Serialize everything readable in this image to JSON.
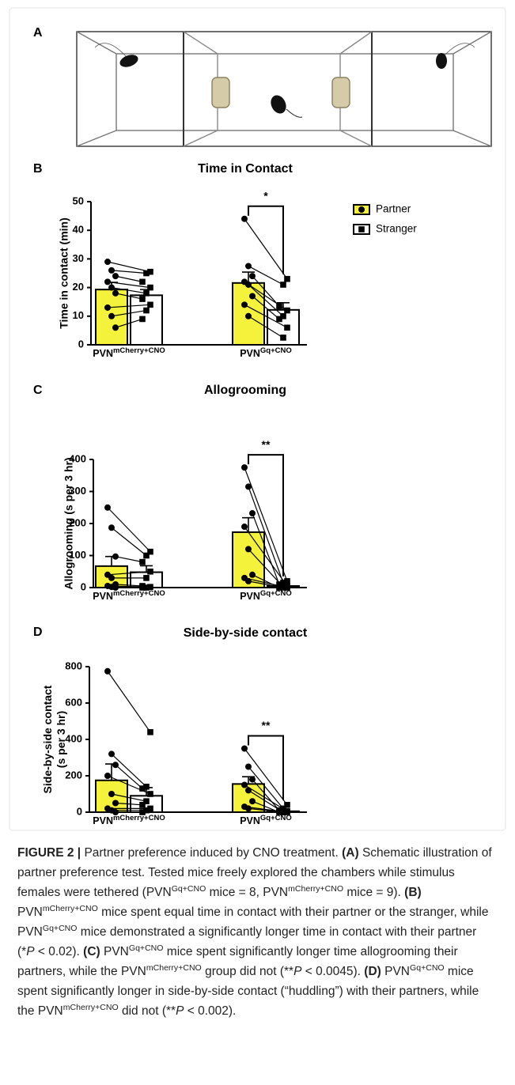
{
  "panel_labels": [
    "A",
    "B",
    "C",
    "D"
  ],
  "chart_data": [
    {
      "type": "bar",
      "title": "Time in Contact",
      "ylabel": [
        "Time in contact (min)"
      ],
      "categories": [
        {
          "text": "PVN",
          "sup": "mCherry+CNO"
        },
        {
          "text": "PVN",
          "sup": "Gq+CNO"
        }
      ],
      "series": [
        {
          "name": "Partner",
          "color": "#f5f23c",
          "marker": "circle",
          "values": [
            19.3,
            21.6
          ],
          "errors": [
            2.5,
            3.8
          ],
          "points": [
            [
              29,
              26,
              24,
              22,
              20,
              18,
              13,
              10,
              6
            ],
            [
              44,
              27.5,
              24,
              22,
              21,
              17,
              14,
              10
            ]
          ]
        },
        {
          "name": "Stranger",
          "color": "#ffffff",
          "marker": "square",
          "values": [
            17.3,
            12.2
          ],
          "errors": [
            2.0,
            2.5
          ],
          "points": [
            [
              25.5,
              25,
              22,
              20,
              18,
              16,
              14,
              12,
              9
            ],
            [
              23,
              21,
              13.5,
              12,
              10,
              9,
              6,
              2.5
            ]
          ]
        }
      ],
      "ylim": [
        0,
        50
      ],
      "yticks": [
        0,
        10,
        20,
        30,
        40,
        50
      ],
      "significance": [
        null,
        "*"
      ],
      "legend": "right"
    },
    {
      "type": "bar",
      "title": "Allogrooming",
      "ylabel": [
        "Allogrooming (s per 3 hr)"
      ],
      "categories": [
        {
          "text": "PVN",
          "sup": "mCherry+CNO"
        },
        {
          "text": "PVN",
          "sup": "Gq+CNO"
        }
      ],
      "series": [
        {
          "name": "Partner",
          "color": "#f5f23c",
          "marker": "circle",
          "values": [
            67,
            173
          ],
          "errors": [
            30,
            45
          ],
          "points": [
            [
              250,
              187,
              97,
              40,
              30,
              10,
              5,
              2,
              0
            ],
            [
              375,
              315,
              232,
              190,
              120,
              40,
              30,
              20
            ]
          ]
        },
        {
          "name": "Stranger",
          "color": "#ffffff",
          "marker": "square",
          "values": [
            48,
            5
          ],
          "errors": [
            20,
            3
          ],
          "points": [
            [
              112,
              100,
              80,
              50,
              30,
              5,
              2,
              0,
              0
            ],
            [
              20,
              15,
              10,
              5,
              2,
              0,
              0,
              0
            ]
          ]
        }
      ],
      "ylim": [
        0,
        400
      ],
      "yticks": [
        0,
        100,
        200,
        300,
        400
      ],
      "significance": [
        null,
        "**"
      ]
    },
    {
      "type": "bar",
      "title": "Side-by-side contact",
      "ylabel": [
        "Side-by-side contact",
        "(s per 3 hr)"
      ],
      "categories": [
        {
          "text": "PVN",
          "sup": "mCherry+CNO"
        },
        {
          "text": "PVN",
          "sup": "Gq+CNO"
        }
      ],
      "series": [
        {
          "name": "Partner",
          "color": "#f5f23c",
          "marker": "circle",
          "values": [
            175,
            155
          ],
          "errors": [
            90,
            40
          ],
          "points": [
            [
              775,
              320,
              260,
              200,
              100,
              50,
              20,
              10,
              0
            ],
            [
              350,
              250,
              180,
              150,
              120,
              60,
              30,
              20
            ]
          ]
        },
        {
          "name": "Stranger",
          "color": "#ffffff",
          "marker": "square",
          "values": [
            90,
            5
          ],
          "errors": [
            45,
            3
          ],
          "points": [
            [
              440,
              140,
              130,
              100,
              60,
              40,
              20,
              10,
              0
            ],
            [
              40,
              20,
              10,
              5,
              0,
              0,
              0,
              0
            ]
          ]
        }
      ],
      "ylim": [
        0,
        800
      ],
      "yticks": [
        0,
        200,
        400,
        600,
        800
      ],
      "significance": [
        null,
        "**"
      ]
    }
  ],
  "caption": [
    {
      "text": "FIGURE 2 | ",
      "style": "bold"
    },
    {
      "text": "Partner preference induced by CNO treatment. ",
      "style": "normal"
    },
    {
      "text": "(A)",
      "style": "bold"
    },
    {
      "text": " Schematic illustration of partner preference test. Tested mice freely explored the chambers while stimulus females were tethered (PVN",
      "style": "normal"
    },
    {
      "text": "Gq+CNO",
      "style": "sup"
    },
    {
      "text": " mice = 8, PVN",
      "style": "normal"
    },
    {
      "text": "mCherry+CNO",
      "style": "sup"
    },
    {
      "text": " mice = 9). ",
      "style": "normal"
    },
    {
      "text": "(B)",
      "style": "bold"
    },
    {
      "text": " PVN",
      "style": "normal"
    },
    {
      "text": "mCherry+CNO",
      "style": "sup"
    },
    {
      "text": " mice spent equal time in contact with their partner or the stranger, while PVN",
      "style": "normal"
    },
    {
      "text": "Gq+CNO",
      "style": "sup"
    },
    {
      "text": " mice demonstrated a significantly longer time in contact with their partner (*",
      "style": "normal"
    },
    {
      "text": "P",
      "style": "italic"
    },
    {
      "text": " < 0.02). ",
      "style": "normal"
    },
    {
      "text": "(C)",
      "style": "bold"
    },
    {
      "text": " PVN",
      "style": "normal"
    },
    {
      "text": "Gq+CNO",
      "style": "sup"
    },
    {
      "text": " mice spent significantly longer time allogrooming their partners, while the PVN",
      "style": "normal"
    },
    {
      "text": "mCherry+CNO",
      "style": "sup"
    },
    {
      "text": " group did not (**",
      "style": "normal"
    },
    {
      "text": "P",
      "style": "italic"
    },
    {
      "text": " < 0.0045). ",
      "style": "normal"
    },
    {
      "text": "(D)",
      "style": "bold"
    },
    {
      "text": " PVN",
      "style": "normal"
    },
    {
      "text": "Gq+CNO",
      "style": "sup"
    },
    {
      "text": " mice spent significantly longer in side-by-side contact (“huddling”) with their partners, while the PVN",
      "style": "normal"
    },
    {
      "text": "mCherry+CNO",
      "style": "sup"
    },
    {
      "text": " did not (**",
      "style": "normal"
    },
    {
      "text": "P",
      "style": "italic"
    },
    {
      "text": " < 0.002).",
      "style": "normal"
    }
  ]
}
